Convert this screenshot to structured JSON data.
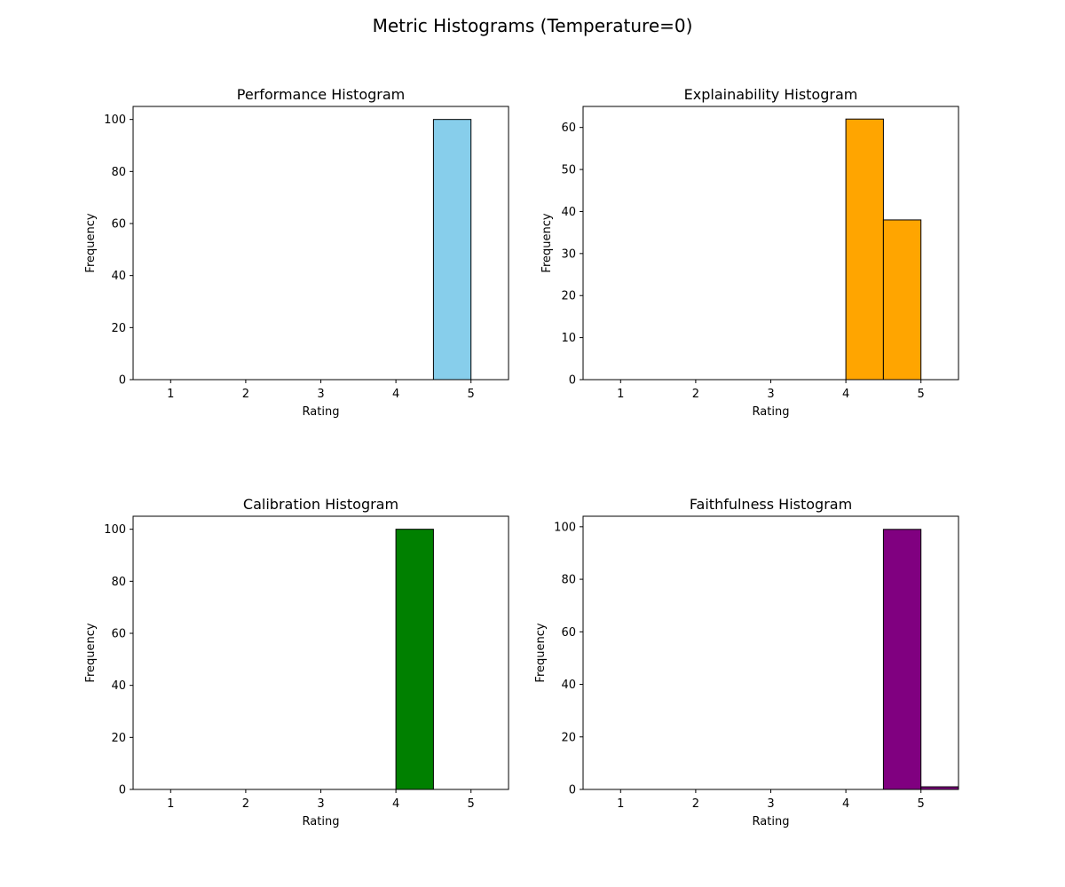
{
  "figure": {
    "suptitle": "Metric Histograms (Temperature=0)"
  },
  "chart_data": [
    {
      "type": "bar",
      "title": "Performance Histogram",
      "xlabel": "Rating",
      "ylabel": "Frequency",
      "xlim": [
        0.5,
        5.5
      ],
      "ylim": [
        0,
        105
      ],
      "xticks": [
        1,
        2,
        3,
        4,
        5
      ],
      "yticks": [
        0,
        20,
        40,
        60,
        80,
        100
      ],
      "color": "#87CEEB",
      "bins": [
        {
          "x0": 4.5,
          "x1": 5.0,
          "count": 100
        }
      ]
    },
    {
      "type": "bar",
      "title": "Explainability Histogram",
      "xlabel": "Rating",
      "ylabel": "Frequency",
      "xlim": [
        0.5,
        5.5
      ],
      "ylim": [
        0,
        65
      ],
      "xticks": [
        1,
        2,
        3,
        4,
        5
      ],
      "yticks": [
        0,
        10,
        20,
        30,
        40,
        50,
        60
      ],
      "color": "#FFA500",
      "bins": [
        {
          "x0": 4.0,
          "x1": 4.5,
          "count": 62
        },
        {
          "x0": 4.5,
          "x1": 5.0,
          "count": 38
        }
      ]
    },
    {
      "type": "bar",
      "title": "Calibration Histogram",
      "xlabel": "Rating",
      "ylabel": "Frequency",
      "xlim": [
        0.5,
        5.5
      ],
      "ylim": [
        0,
        105
      ],
      "xticks": [
        1,
        2,
        3,
        4,
        5
      ],
      "yticks": [
        0,
        20,
        40,
        60,
        80,
        100
      ],
      "color": "#008000",
      "bins": [
        {
          "x0": 4.0,
          "x1": 4.5,
          "count": 100
        }
      ]
    },
    {
      "type": "bar",
      "title": "Faithfulness Histogram",
      "xlabel": "Rating",
      "ylabel": "Frequency",
      "xlim": [
        0.5,
        5.5
      ],
      "ylim": [
        0,
        104
      ],
      "xticks": [
        1,
        2,
        3,
        4,
        5
      ],
      "yticks": [
        0,
        20,
        40,
        60,
        80,
        100
      ],
      "color": "#800080",
      "bins": [
        {
          "x0": 4.5,
          "x1": 5.0,
          "count": 99
        },
        {
          "x0": 5.0,
          "x1": 5.5,
          "count": 1
        }
      ]
    }
  ]
}
